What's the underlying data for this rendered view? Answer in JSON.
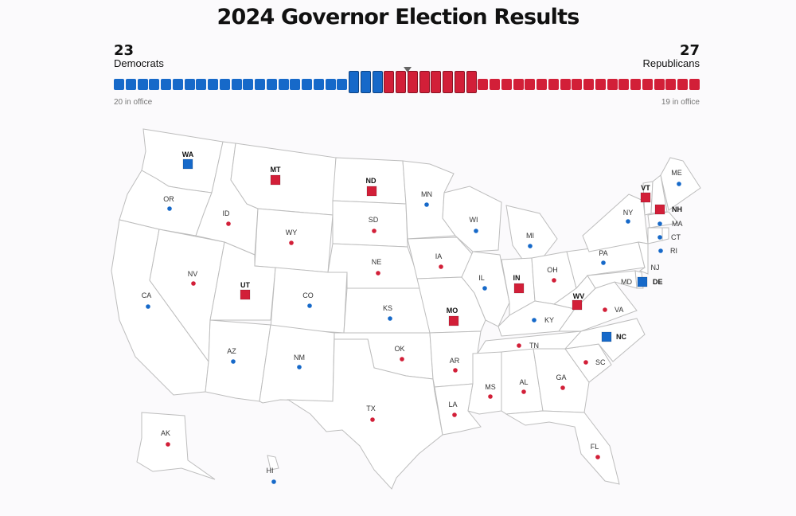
{
  "title": "2024 Governor Election Results",
  "summary": {
    "dem": {
      "count": "23",
      "label": "Democrats",
      "in_office": "20 in office",
      "in_office_n": 20,
      "up_n": 3,
      "color": "#1669c9"
    },
    "rep": {
      "count": "27",
      "label": "Republicans",
      "in_office": "19 in office",
      "in_office_n": 19,
      "up_n": 8,
      "color": "#d21f38"
    }
  },
  "colors": {
    "dem": "#1669c9",
    "rep": "#d21f38",
    "land": "#ffffff",
    "border": "#bdbdbd"
  },
  "states": [
    {
      "abbr": "WA",
      "party": "dem",
      "up": true
    },
    {
      "abbr": "OR",
      "party": "dem",
      "up": false
    },
    {
      "abbr": "CA",
      "party": "dem",
      "up": false
    },
    {
      "abbr": "NV",
      "party": "rep",
      "up": false
    },
    {
      "abbr": "ID",
      "party": "rep",
      "up": false
    },
    {
      "abbr": "MT",
      "party": "rep",
      "up": true
    },
    {
      "abbr": "WY",
      "party": "rep",
      "up": false
    },
    {
      "abbr": "UT",
      "party": "rep",
      "up": true
    },
    {
      "abbr": "AZ",
      "party": "dem",
      "up": false
    },
    {
      "abbr": "CO",
      "party": "dem",
      "up": false
    },
    {
      "abbr": "NM",
      "party": "dem",
      "up": false
    },
    {
      "abbr": "ND",
      "party": "rep",
      "up": true
    },
    {
      "abbr": "SD",
      "party": "rep",
      "up": false
    },
    {
      "abbr": "NE",
      "party": "rep",
      "up": false
    },
    {
      "abbr": "KS",
      "party": "dem",
      "up": false
    },
    {
      "abbr": "OK",
      "party": "rep",
      "up": false
    },
    {
      "abbr": "TX",
      "party": "rep",
      "up": false
    },
    {
      "abbr": "MN",
      "party": "dem",
      "up": false
    },
    {
      "abbr": "IA",
      "party": "rep",
      "up": false
    },
    {
      "abbr": "MO",
      "party": "rep",
      "up": true
    },
    {
      "abbr": "AR",
      "party": "rep",
      "up": false
    },
    {
      "abbr": "LA",
      "party": "rep",
      "up": false
    },
    {
      "abbr": "WI",
      "party": "dem",
      "up": false
    },
    {
      "abbr": "IL",
      "party": "dem",
      "up": false
    },
    {
      "abbr": "MI",
      "party": "dem",
      "up": false
    },
    {
      "abbr": "IN",
      "party": "rep",
      "up": true
    },
    {
      "abbr": "OH",
      "party": "rep",
      "up": false
    },
    {
      "abbr": "KY",
      "party": "dem",
      "up": false
    },
    {
      "abbr": "TN",
      "party": "rep",
      "up": false
    },
    {
      "abbr": "MS",
      "party": "rep",
      "up": false
    },
    {
      "abbr": "AL",
      "party": "rep",
      "up": false
    },
    {
      "abbr": "GA",
      "party": "rep",
      "up": false
    },
    {
      "abbr": "FL",
      "party": "rep",
      "up": false
    },
    {
      "abbr": "SC",
      "party": "rep",
      "up": false
    },
    {
      "abbr": "NC",
      "party": "dem",
      "up": true
    },
    {
      "abbr": "VA",
      "party": "rep",
      "up": false
    },
    {
      "abbr": "WV",
      "party": "rep",
      "up": true
    },
    {
      "abbr": "PA",
      "party": "dem",
      "up": false
    },
    {
      "abbr": "NY",
      "party": "dem",
      "up": false
    },
    {
      "abbr": "VT",
      "party": "rep",
      "up": true
    },
    {
      "abbr": "NH",
      "party": "rep",
      "up": true
    },
    {
      "abbr": "ME",
      "party": "dem",
      "up": false
    },
    {
      "abbr": "MA",
      "party": "dem",
      "up": false
    },
    {
      "abbr": "CT",
      "party": "dem",
      "up": false
    },
    {
      "abbr": "RI",
      "party": "dem",
      "up": false
    },
    {
      "abbr": "NJ",
      "party": "dem",
      "up": false
    },
    {
      "abbr": "DE",
      "party": "dem",
      "up": true
    },
    {
      "abbr": "MD",
      "party": "dem",
      "up": false
    },
    {
      "abbr": "AK",
      "party": "rep",
      "up": false
    },
    {
      "abbr": "HI",
      "party": "dem",
      "up": false
    }
  ]
}
